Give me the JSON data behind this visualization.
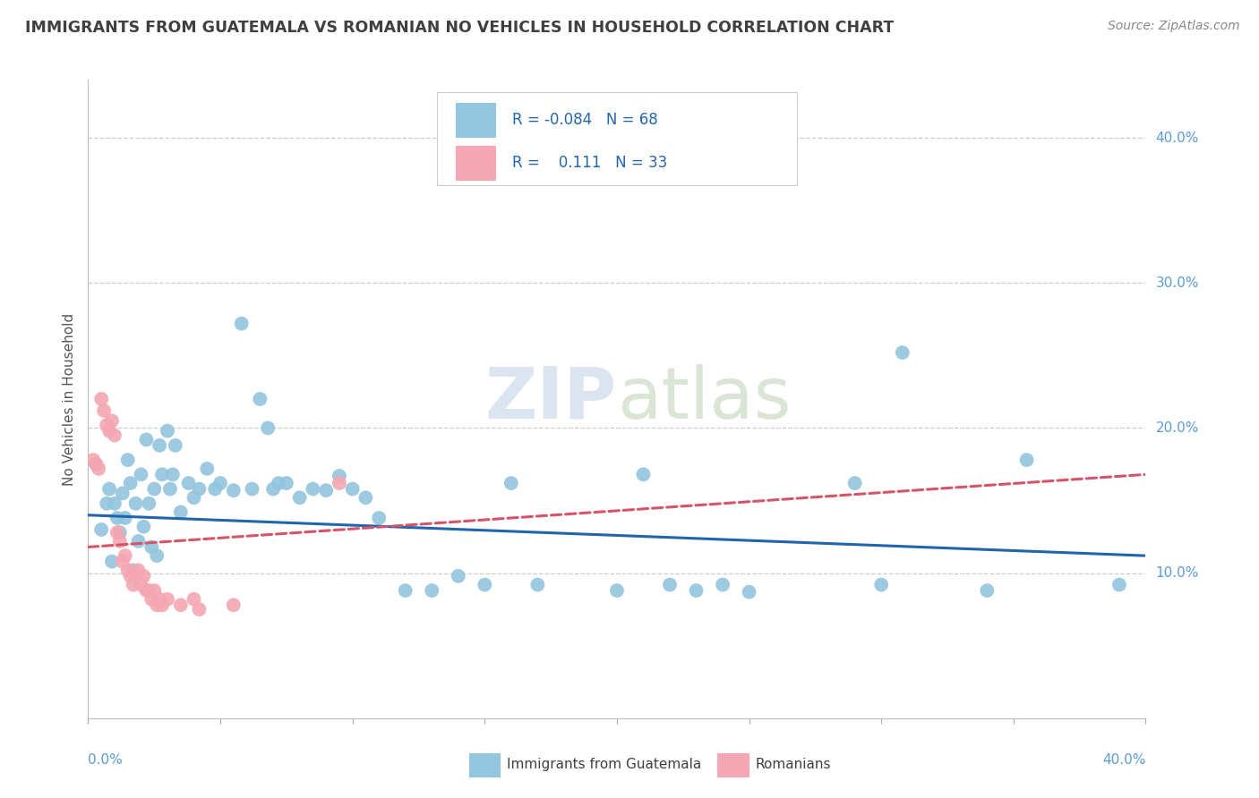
{
  "title": "IMMIGRANTS FROM GUATEMALA VS ROMANIAN NO VEHICLES IN HOUSEHOLD CORRELATION CHART",
  "source": "Source: ZipAtlas.com",
  "ylabel": "No Vehicles in Household",
  "ytick_vals": [
    0.1,
    0.2,
    0.3,
    0.4
  ],
  "ytick_labels": [
    "10.0%",
    "20.0%",
    "30.0%",
    "40.0%"
  ],
  "xlim": [
    0.0,
    0.4
  ],
  "ylim": [
    0.0,
    0.44
  ],
  "blue_color": "#92c5de",
  "pink_color": "#f4a6b2",
  "blue_line_color": "#2166ac",
  "pink_line_color": "#d6546a",
  "guatemala_points": [
    [
      0.003,
      0.175
    ],
    [
      0.005,
      0.13
    ],
    [
      0.007,
      0.148
    ],
    [
      0.008,
      0.158
    ],
    [
      0.009,
      0.108
    ],
    [
      0.01,
      0.148
    ],
    [
      0.011,
      0.138
    ],
    [
      0.012,
      0.128
    ],
    [
      0.013,
      0.155
    ],
    [
      0.014,
      0.138
    ],
    [
      0.015,
      0.178
    ],
    [
      0.016,
      0.162
    ],
    [
      0.017,
      0.102
    ],
    [
      0.018,
      0.148
    ],
    [
      0.019,
      0.122
    ],
    [
      0.02,
      0.168
    ],
    [
      0.021,
      0.132
    ],
    [
      0.022,
      0.192
    ],
    [
      0.023,
      0.148
    ],
    [
      0.024,
      0.118
    ],
    [
      0.025,
      0.158
    ],
    [
      0.026,
      0.112
    ],
    [
      0.027,
      0.188
    ],
    [
      0.028,
      0.168
    ],
    [
      0.03,
      0.198
    ],
    [
      0.031,
      0.158
    ],
    [
      0.032,
      0.168
    ],
    [
      0.033,
      0.188
    ],
    [
      0.035,
      0.142
    ],
    [
      0.038,
      0.162
    ],
    [
      0.04,
      0.152
    ],
    [
      0.042,
      0.158
    ],
    [
      0.045,
      0.172
    ],
    [
      0.048,
      0.158
    ],
    [
      0.05,
      0.162
    ],
    [
      0.055,
      0.157
    ],
    [
      0.058,
      0.272
    ],
    [
      0.062,
      0.158
    ],
    [
      0.065,
      0.22
    ],
    [
      0.068,
      0.2
    ],
    [
      0.07,
      0.158
    ],
    [
      0.072,
      0.162
    ],
    [
      0.075,
      0.162
    ],
    [
      0.08,
      0.152
    ],
    [
      0.085,
      0.158
    ],
    [
      0.09,
      0.157
    ],
    [
      0.095,
      0.167
    ],
    [
      0.1,
      0.158
    ],
    [
      0.105,
      0.152
    ],
    [
      0.11,
      0.138
    ],
    [
      0.12,
      0.088
    ],
    [
      0.13,
      0.088
    ],
    [
      0.14,
      0.098
    ],
    [
      0.15,
      0.092
    ],
    [
      0.16,
      0.162
    ],
    [
      0.17,
      0.092
    ],
    [
      0.2,
      0.088
    ],
    [
      0.21,
      0.168
    ],
    [
      0.22,
      0.092
    ],
    [
      0.23,
      0.088
    ],
    [
      0.24,
      0.092
    ],
    [
      0.25,
      0.087
    ],
    [
      0.29,
      0.162
    ],
    [
      0.3,
      0.092
    ],
    [
      0.308,
      0.252
    ],
    [
      0.34,
      0.088
    ],
    [
      0.355,
      0.178
    ],
    [
      0.39,
      0.092
    ]
  ],
  "romanian_points": [
    [
      0.002,
      0.178
    ],
    [
      0.003,
      0.175
    ],
    [
      0.004,
      0.172
    ],
    [
      0.005,
      0.22
    ],
    [
      0.006,
      0.212
    ],
    [
      0.007,
      0.202
    ],
    [
      0.008,
      0.198
    ],
    [
      0.009,
      0.205
    ],
    [
      0.01,
      0.195
    ],
    [
      0.011,
      0.128
    ],
    [
      0.012,
      0.122
    ],
    [
      0.013,
      0.108
    ],
    [
      0.014,
      0.112
    ],
    [
      0.015,
      0.102
    ],
    [
      0.016,
      0.098
    ],
    [
      0.017,
      0.092
    ],
    [
      0.018,
      0.098
    ],
    [
      0.019,
      0.102
    ],
    [
      0.02,
      0.092
    ],
    [
      0.021,
      0.098
    ],
    [
      0.022,
      0.088
    ],
    [
      0.023,
      0.088
    ],
    [
      0.024,
      0.082
    ],
    [
      0.025,
      0.088
    ],
    [
      0.026,
      0.078
    ],
    [
      0.027,
      0.082
    ],
    [
      0.028,
      0.078
    ],
    [
      0.03,
      0.082
    ],
    [
      0.035,
      0.078
    ],
    [
      0.04,
      0.082
    ],
    [
      0.042,
      0.075
    ],
    [
      0.055,
      0.078
    ],
    [
      0.095,
      0.162
    ]
  ],
  "blue_trendline_x": [
    0.0,
    0.4
  ],
  "blue_trendline_y": [
    0.14,
    0.112
  ],
  "pink_trendline_x": [
    0.0,
    0.4
  ],
  "pink_trendline_y": [
    0.118,
    0.168
  ]
}
